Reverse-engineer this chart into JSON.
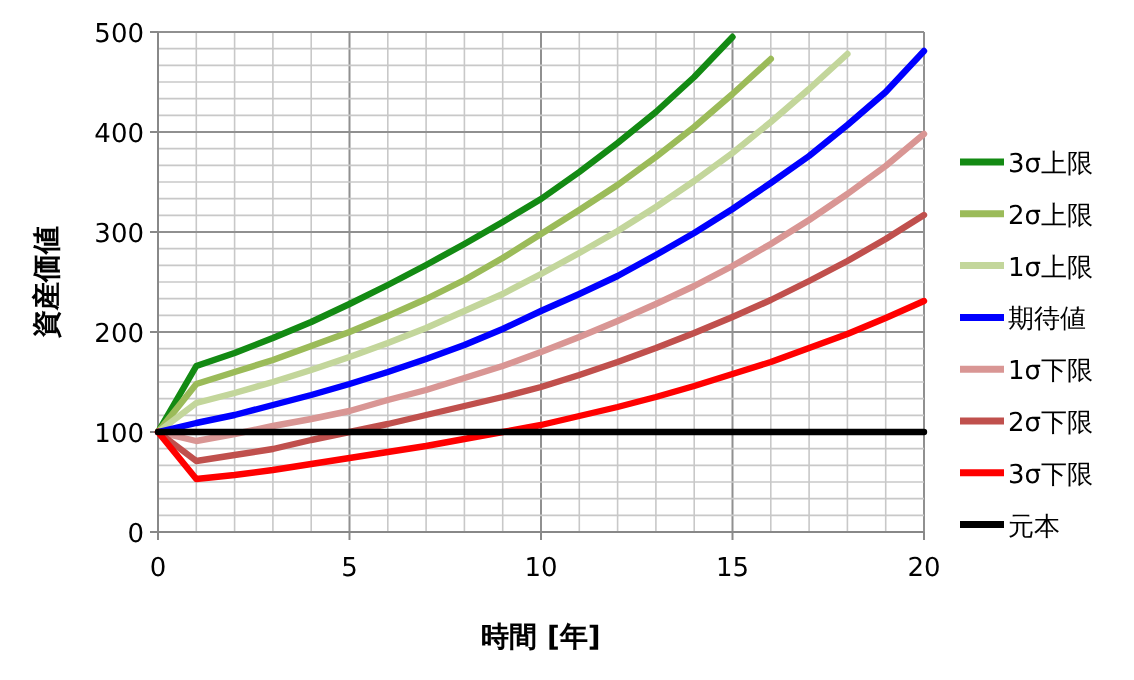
{
  "chart_data": {
    "type": "line",
    "xlabel": "時間 [年]",
    "ylabel": "資産価値",
    "x": [
      0,
      1,
      2,
      3,
      4,
      5,
      6,
      7,
      8,
      9,
      10,
      11,
      12,
      13,
      14,
      15,
      16,
      17,
      18,
      19,
      20
    ],
    "xlim": [
      0,
      20
    ],
    "xticks": [
      0,
      5,
      10,
      15,
      20
    ],
    "ylim": [
      0,
      500
    ],
    "yticks": [
      0,
      100,
      200,
      300,
      400,
      500
    ],
    "grid": true,
    "legend": "right",
    "series": [
      {
        "name": "3σ上限",
        "color": "#138a13",
        "values": [
          100,
          166,
          179,
          194,
          210,
          228,
          247,
          267,
          288,
          310,
          333,
          360,
          389,
          420,
          455,
          495,
          null,
          null,
          null,
          null,
          null
        ]
      },
      {
        "name": "2σ上限",
        "color": "#9bbb59",
        "values": [
          100,
          148,
          160,
          172,
          186,
          200,
          216,
          233,
          252,
          274,
          298,
          322,
          347,
          375,
          405,
          438,
          473,
          null,
          null,
          null,
          null
        ]
      },
      {
        "name": "1σ上限",
        "color": "#c3d69b",
        "values": [
          100,
          129,
          139,
          150,
          162,
          175,
          189,
          204,
          221,
          238,
          258,
          279,
          301,
          325,
          351,
          379,
          410,
          443,
          478,
          null,
          null
        ]
      },
      {
        "name": "期待値",
        "color": "#0000ff",
        "values": [
          100,
          109,
          117,
          127,
          137,
          148,
          160,
          173,
          187,
          203,
          221,
          238,
          256,
          277,
          299,
          323,
          349,
          376,
          407,
          440,
          481
        ]
      },
      {
        "name": "1σ下限",
        "color": "#d99694",
        "values": [
          100,
          91,
          98,
          106,
          113,
          121,
          132,
          142,
          154,
          166,
          180,
          195,
          211,
          228,
          246,
          266,
          288,
          312,
          338,
          366,
          398
        ]
      },
      {
        "name": "2σ下限",
        "color": "#c0504d",
        "values": [
          100,
          71,
          77,
          83,
          92,
          100,
          108,
          117,
          126,
          135,
          145,
          157,
          170,
          184,
          199,
          215,
          232,
          251,
          271,
          293,
          317
        ]
      },
      {
        "name": "3σ下限",
        "color": "#ff0000",
        "values": [
          100,
          53,
          57,
          62,
          68,
          74,
          80,
          86,
          93,
          100,
          107,
          116,
          125,
          135,
          146,
          158,
          170,
          184,
          198,
          214,
          231
        ]
      },
      {
        "name": "元本",
        "color": "#000000",
        "values": [
          100,
          100,
          100,
          100,
          100,
          100,
          100,
          100,
          100,
          100,
          100,
          100,
          100,
          100,
          100,
          100,
          100,
          100,
          100,
          100,
          100
        ]
      }
    ]
  }
}
